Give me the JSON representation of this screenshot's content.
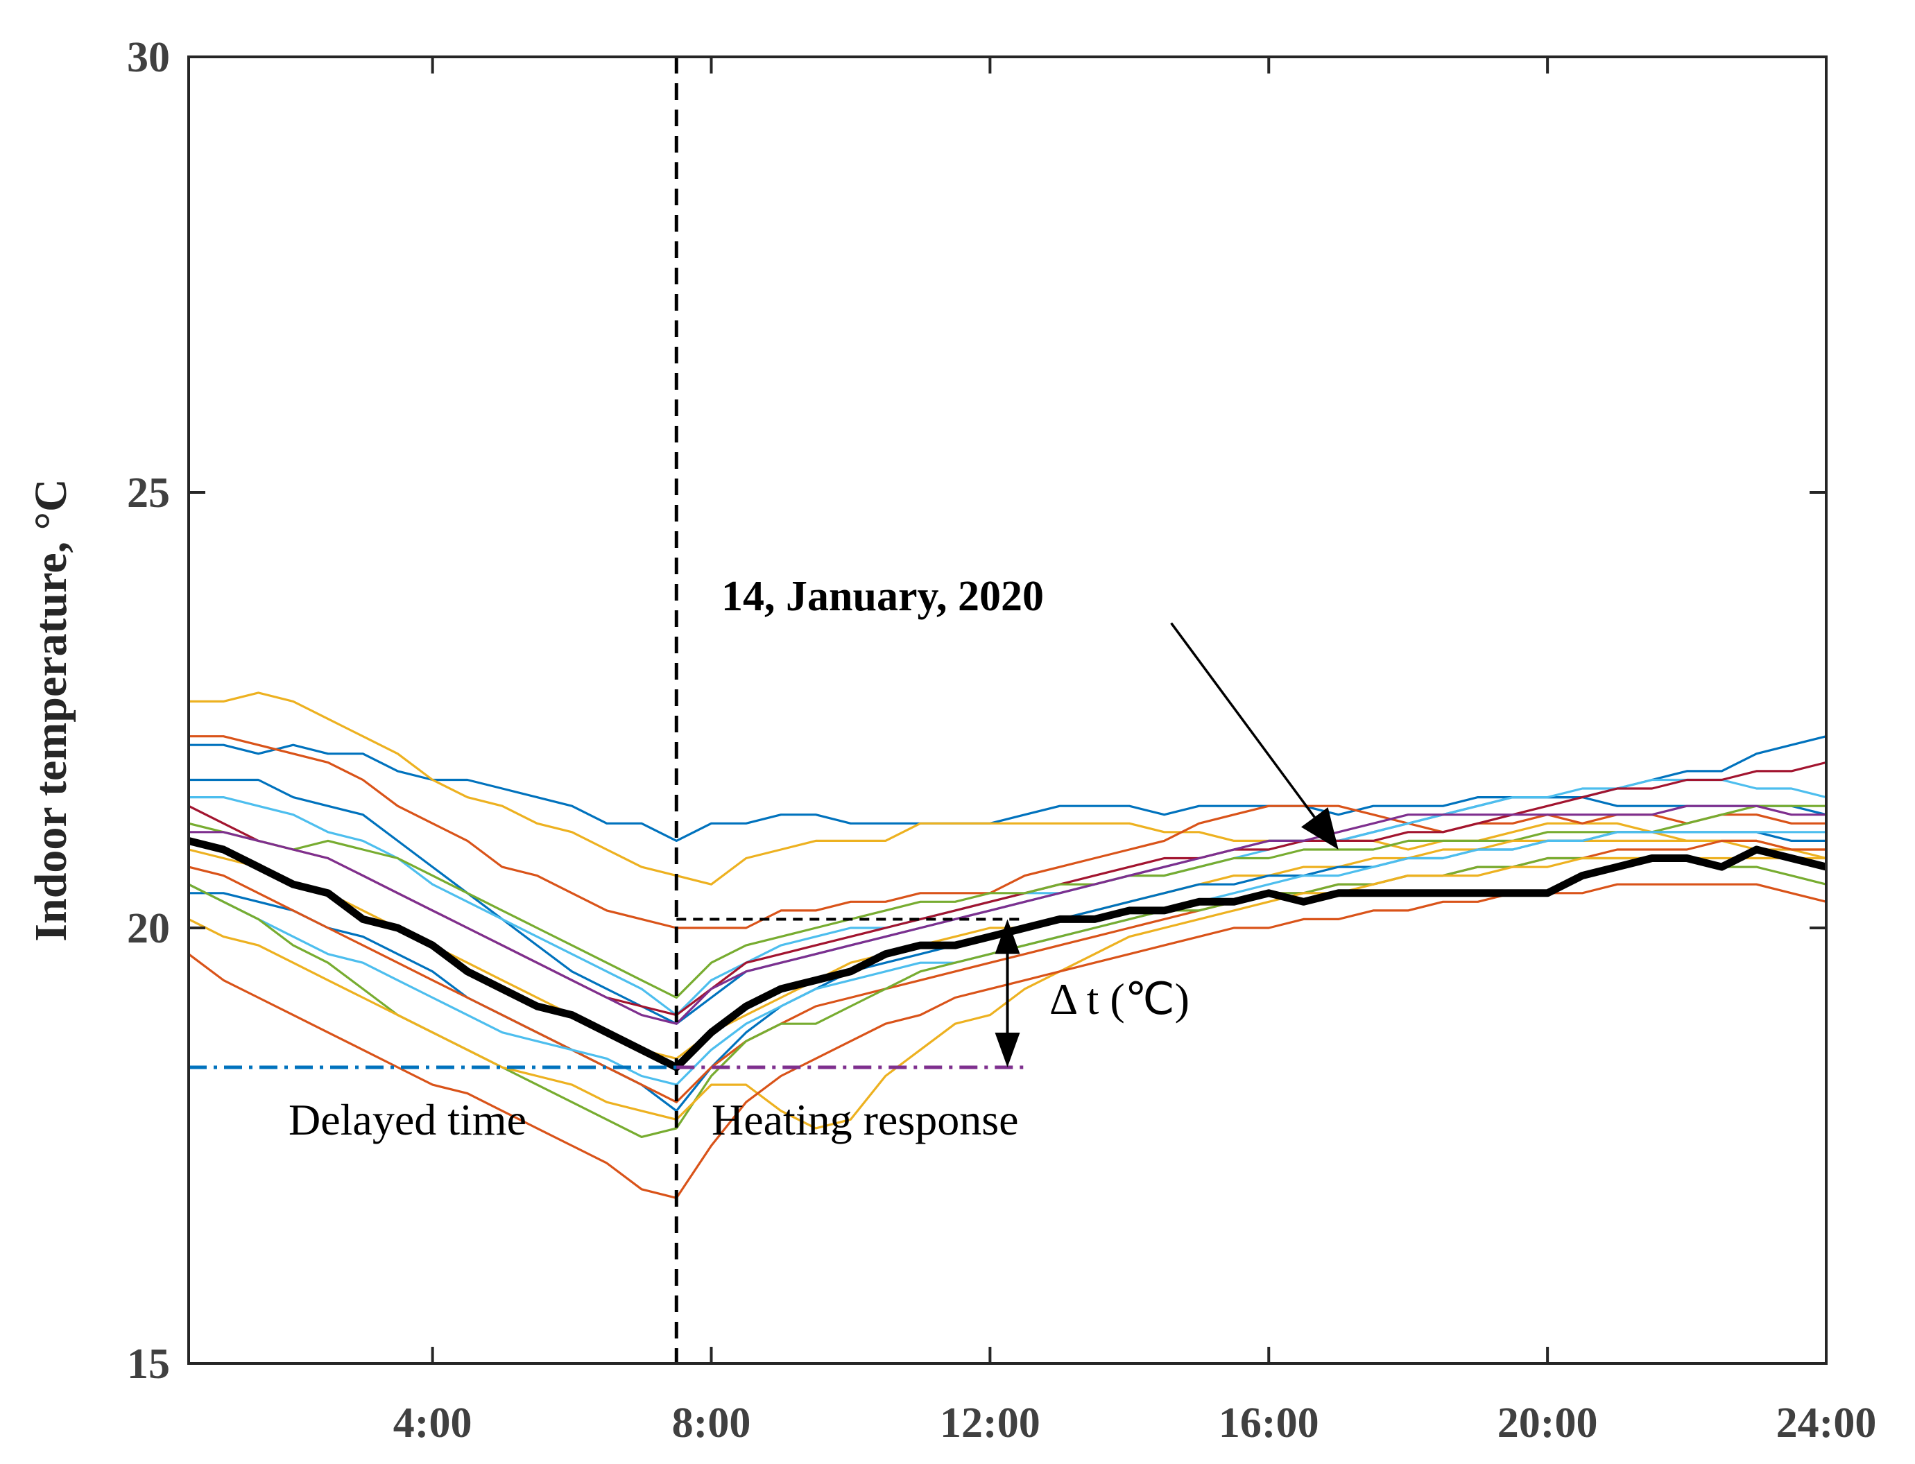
{
  "chart_data": {
    "type": "line",
    "title": "",
    "xlabel": "",
    "ylabel": "Indoor temperature, °C",
    "xlim": [
      0.5,
      24
    ],
    "ylim": [
      15,
      30
    ],
    "x_tick_values": [
      4,
      8,
      12,
      16,
      20,
      24
    ],
    "x_tick_labels": [
      "4:00",
      "8:00",
      "12:00",
      "16:00",
      "20:00",
      "24:00"
    ],
    "y_tick_values": [
      15,
      20,
      25,
      30
    ],
    "y_tick_labels": [
      "15",
      "20",
      "25",
      "30"
    ],
    "grid": false,
    "x": [
      0.5,
      1,
      1.5,
      2,
      2.5,
      3,
      3.5,
      4,
      4.5,
      5,
      5.5,
      6,
      6.5,
      7,
      7.5,
      8,
      8.5,
      9,
      9.5,
      10,
      10.5,
      11,
      11.5,
      12,
      12.5,
      13,
      13.5,
      14,
      14.5,
      15,
      15.5,
      16,
      16.5,
      17,
      17.5,
      18,
      18.5,
      19,
      19.5,
      20,
      20.5,
      21,
      21.5,
      22,
      22.5,
      23,
      23.5,
      24
    ],
    "heating_start_hour": 7.5,
    "series": [
      {
        "name": "",
        "color": "#0072BD",
        "values": [
          22.1,
          22.1,
          22.0,
          22.1,
          22.0,
          22.0,
          21.8,
          21.7,
          21.7,
          21.6,
          21.5,
          21.4,
          21.2,
          21.2,
          21.0,
          21.2,
          21.2,
          21.3,
          21.3,
          21.2,
          21.2,
          21.2,
          21.2,
          21.2,
          21.3,
          21.4,
          21.4,
          21.4,
          21.3,
          21.4,
          21.4,
          21.4,
          21.4,
          21.3,
          21.4,
          21.4,
          21.4,
          21.5,
          21.5,
          21.5,
          21.5,
          21.6,
          21.7,
          21.8,
          21.8,
          22.0,
          22.1,
          22.2
        ]
      },
      {
        "name": "",
        "color": "#EDB120",
        "values": [
          22.6,
          22.6,
          22.7,
          22.6,
          22.4,
          22.2,
          22.0,
          21.7,
          21.5,
          21.4,
          21.2,
          21.1,
          20.9,
          20.7,
          20.6,
          20.5,
          20.8,
          20.9,
          21.0,
          21.0,
          21.0,
          21.2,
          21.2,
          21.2,
          21.2,
          21.2,
          21.2,
          21.2,
          21.1,
          21.1,
          21.0,
          21.0,
          21.0,
          21.0,
          21.0,
          20.9,
          21.0,
          21.0,
          21.1,
          21.2,
          21.2,
          21.2,
          21.1,
          21.0,
          21.0,
          20.9,
          20.9,
          20.8
        ]
      },
      {
        "name": "",
        "color": "#D95319",
        "values": [
          22.2,
          22.2,
          22.1,
          22.0,
          21.9,
          21.7,
          21.4,
          21.2,
          21.0,
          20.7,
          20.6,
          20.4,
          20.2,
          20.1,
          20.0,
          20.0,
          20.0,
          20.2,
          20.2,
          20.3,
          20.3,
          20.4,
          20.4,
          20.4,
          20.6,
          20.7,
          20.8,
          20.9,
          21.0,
          21.2,
          21.3,
          21.4,
          21.4,
          21.4,
          21.3,
          21.2,
          21.1,
          21.2,
          21.2,
          21.3,
          21.2,
          21.3,
          21.3,
          21.2,
          21.3,
          21.3,
          21.2,
          21.2
        ]
      },
      {
        "name": "",
        "color": "#0072BD",
        "values": [
          21.7,
          21.7,
          21.7,
          21.5,
          21.4,
          21.3,
          21.0,
          20.7,
          20.4,
          20.1,
          19.8,
          19.5,
          19.3,
          19.1,
          18.9,
          19.2,
          19.5,
          19.6,
          19.7,
          19.8,
          19.9,
          20.0,
          20.1,
          20.2,
          20.3,
          20.4,
          20.5,
          20.6,
          20.7,
          20.8,
          20.9,
          21.0,
          21.0,
          21.0,
          21.1,
          21.2,
          21.3,
          21.4,
          21.5,
          21.5,
          21.5,
          21.4,
          21.4,
          21.4,
          21.4,
          21.4,
          21.4,
          21.3
        ]
      },
      {
        "name": "",
        "color": "#4DBEEE",
        "values": [
          21.5,
          21.5,
          21.4,
          21.3,
          21.1,
          21.0,
          20.8,
          20.5,
          20.3,
          20.1,
          19.9,
          19.7,
          19.5,
          19.3,
          19.0,
          19.4,
          19.6,
          19.8,
          19.9,
          20.0,
          20.0,
          20.1,
          20.2,
          20.3,
          20.4,
          20.4,
          20.5,
          20.6,
          20.6,
          20.7,
          20.8,
          20.9,
          21.0,
          21.0,
          21.1,
          21.2,
          21.3,
          21.4,
          21.5,
          21.5,
          21.6,
          21.6,
          21.7,
          21.7,
          21.7,
          21.6,
          21.6,
          21.5
        ]
      },
      {
        "name": "",
        "color": "#A2142F",
        "values": [
          21.4,
          21.2,
          21.0,
          20.9,
          20.8,
          20.6,
          20.4,
          20.2,
          20.0,
          19.8,
          19.6,
          19.4,
          19.2,
          19.1,
          19.0,
          19.3,
          19.6,
          19.7,
          19.8,
          19.9,
          20.0,
          20.1,
          20.2,
          20.3,
          20.4,
          20.5,
          20.6,
          20.7,
          20.8,
          20.8,
          20.9,
          20.9,
          21.0,
          21.0,
          21.0,
          21.1,
          21.1,
          21.2,
          21.3,
          21.4,
          21.5,
          21.6,
          21.6,
          21.7,
          21.7,
          21.8,
          21.8,
          21.9
        ]
      },
      {
        "name": "",
        "color": "#77AC30",
        "values": [
          21.2,
          21.1,
          21.0,
          20.9,
          21.0,
          20.9,
          20.8,
          20.6,
          20.4,
          20.2,
          20.0,
          19.8,
          19.6,
          19.4,
          19.2,
          19.6,
          19.8,
          19.9,
          20.0,
          20.1,
          20.2,
          20.3,
          20.3,
          20.4,
          20.4,
          20.5,
          20.5,
          20.6,
          20.6,
          20.7,
          20.8,
          20.8,
          20.9,
          20.9,
          20.9,
          21.0,
          21.0,
          21.0,
          21.0,
          21.1,
          21.1,
          21.1,
          21.1,
          21.2,
          21.3,
          21.4,
          21.4,
          21.4
        ]
      },
      {
        "name": "",
        "color": "#7E2F8E",
        "values": [
          21.1,
          21.1,
          21.0,
          20.9,
          20.8,
          20.6,
          20.4,
          20.2,
          20.0,
          19.8,
          19.6,
          19.4,
          19.2,
          19.0,
          18.9,
          19.3,
          19.5,
          19.6,
          19.7,
          19.8,
          19.9,
          20.0,
          20.1,
          20.2,
          20.3,
          20.4,
          20.5,
          20.6,
          20.7,
          20.8,
          20.9,
          21.0,
          21.0,
          21.1,
          21.2,
          21.3,
          21.3,
          21.3,
          21.3,
          21.3,
          21.3,
          21.3,
          21.3,
          21.4,
          21.4,
          21.4,
          21.3,
          21.3
        ]
      },
      {
        "name": "",
        "color": "#EDB120",
        "values": [
          20.9,
          20.8,
          20.7,
          20.5,
          20.4,
          20.2,
          20.0,
          19.8,
          19.6,
          19.4,
          19.2,
          19.0,
          18.8,
          18.6,
          18.5,
          18.8,
          19.0,
          19.2,
          19.4,
          19.6,
          19.7,
          19.8,
          19.9,
          20.0,
          20.0,
          20.1,
          20.2,
          20.3,
          20.4,
          20.5,
          20.6,
          20.6,
          20.7,
          20.7,
          20.8,
          20.8,
          20.9,
          20.9,
          21.0,
          21.0,
          21.0,
          21.0,
          21.0,
          21.0,
          21.0,
          21.0,
          20.9,
          20.9
        ]
      },
      {
        "name": "",
        "color": "#0072BD",
        "values": [
          20.4,
          20.4,
          20.3,
          20.2,
          20.0,
          19.9,
          19.7,
          19.5,
          19.2,
          19.0,
          18.8,
          18.6,
          18.4,
          18.2,
          17.9,
          18.4,
          18.8,
          19.1,
          19.3,
          19.5,
          19.6,
          19.7,
          19.8,
          19.9,
          20.0,
          20.1,
          20.2,
          20.3,
          20.4,
          20.5,
          20.5,
          20.6,
          20.6,
          20.7,
          20.7,
          20.8,
          20.8,
          20.9,
          20.9,
          21.0,
          21.0,
          21.1,
          21.1,
          21.1,
          21.1,
          21.1,
          21.0,
          21.0
        ]
      },
      {
        "name": "",
        "color": "#D95319",
        "values": [
          20.7,
          20.6,
          20.4,
          20.2,
          20.0,
          19.8,
          19.6,
          19.4,
          19.2,
          19.0,
          18.8,
          18.6,
          18.4,
          18.2,
          18.0,
          18.4,
          18.7,
          18.9,
          19.1,
          19.2,
          19.3,
          19.4,
          19.5,
          19.6,
          19.7,
          19.8,
          19.9,
          20.0,
          20.1,
          20.2,
          20.3,
          20.4,
          20.4,
          20.5,
          20.5,
          20.6,
          20.6,
          20.7,
          20.7,
          20.8,
          20.8,
          20.9,
          20.9,
          20.9,
          21.0,
          21.0,
          20.9,
          20.9
        ]
      },
      {
        "name": "",
        "color": "#4DBEEE",
        "values": [
          20.5,
          20.3,
          20.1,
          19.9,
          19.7,
          19.6,
          19.4,
          19.2,
          19.0,
          18.8,
          18.7,
          18.6,
          18.5,
          18.3,
          18.2,
          18.6,
          18.9,
          19.1,
          19.3,
          19.4,
          19.5,
          19.6,
          19.6,
          19.7,
          19.8,
          19.9,
          20.0,
          20.1,
          20.2,
          20.3,
          20.4,
          20.5,
          20.6,
          20.6,
          20.7,
          20.8,
          20.8,
          20.9,
          20.9,
          21.0,
          21.0,
          21.1,
          21.1,
          21.1,
          21.1,
          21.1,
          21.1,
          21.1
        ]
      },
      {
        "name": "",
        "color": "#77AC30",
        "values": [
          20.5,
          20.3,
          20.1,
          19.8,
          19.6,
          19.3,
          19.0,
          18.8,
          18.6,
          18.4,
          18.2,
          18.0,
          17.8,
          17.6,
          17.7,
          18.3,
          18.7,
          18.9,
          18.9,
          19.1,
          19.3,
          19.5,
          19.6,
          19.7,
          19.8,
          19.9,
          20.0,
          20.1,
          20.2,
          20.2,
          20.3,
          20.4,
          20.4,
          20.5,
          20.5,
          20.6,
          20.6,
          20.7,
          20.7,
          20.8,
          20.8,
          20.8,
          20.8,
          20.8,
          20.7,
          20.7,
          20.6,
          20.5
        ]
      },
      {
        "name": "",
        "color": "#EDB120",
        "values": [
          20.1,
          19.9,
          19.8,
          19.6,
          19.4,
          19.2,
          19.0,
          18.8,
          18.6,
          18.4,
          18.3,
          18.2,
          18.0,
          17.9,
          17.8,
          18.2,
          18.2,
          17.9,
          17.7,
          17.8,
          18.3,
          18.6,
          18.9,
          19.0,
          19.3,
          19.5,
          19.7,
          19.9,
          20.0,
          20.1,
          20.2,
          20.3,
          20.4,
          20.4,
          20.5,
          20.6,
          20.6,
          20.6,
          20.7,
          20.7,
          20.8,
          20.8,
          20.8,
          20.8,
          20.8,
          20.8,
          20.8,
          20.8
        ]
      },
      {
        "name": "",
        "color": "#D95319",
        "values": [
          19.7,
          19.4,
          19.2,
          19.0,
          18.8,
          18.6,
          18.4,
          18.2,
          18.1,
          17.9,
          17.7,
          17.5,
          17.3,
          17.0,
          16.9,
          17.5,
          18.0,
          18.3,
          18.5,
          18.7,
          18.9,
          19.0,
          19.2,
          19.3,
          19.4,
          19.5,
          19.6,
          19.7,
          19.8,
          19.9,
          20.0,
          20.0,
          20.1,
          20.1,
          20.2,
          20.2,
          20.3,
          20.3,
          20.4,
          20.4,
          20.4,
          20.5,
          20.5,
          20.5,
          20.5,
          20.5,
          20.4,
          20.3
        ]
      },
      {
        "name": "14, January, 2020",
        "color": "#000000",
        "highlight": true,
        "values": [
          21.0,
          20.9,
          20.7,
          20.5,
          20.4,
          20.1,
          20.0,
          19.8,
          19.5,
          19.3,
          19.1,
          19.0,
          18.8,
          18.6,
          18.4,
          18.8,
          19.1,
          19.3,
          19.4,
          19.5,
          19.7,
          19.8,
          19.8,
          19.9,
          20.0,
          20.1,
          20.1,
          20.2,
          20.2,
          20.3,
          20.3,
          20.4,
          20.3,
          20.4,
          20.4,
          20.4,
          20.4,
          20.4,
          20.4,
          20.4,
          20.6,
          20.7,
          20.8,
          20.8,
          20.7,
          20.9,
          20.8,
          20.7
        ]
      }
    ],
    "reference_lines": {
      "heating_start": {
        "x": 7.5,
        "color": "#000000",
        "style": "dashed"
      },
      "min_temp_left": {
        "y": 18.4,
        "x_from": 0.5,
        "x_to": 7.5,
        "color": "#0072BD",
        "style": "dash-dot"
      },
      "min_temp_right": {
        "y": 18.4,
        "x_from": 7.5,
        "x_to": 12.5,
        "color": "#7E2F8E",
        "style": "dash-dot"
      },
      "target_temp": {
        "y": 20.1,
        "x_from": 7.5,
        "x_to": 12.5,
        "color": "#000000",
        "style": "dashed"
      }
    },
    "annotations": {
      "delta_label": "Δ t (℃)",
      "delta_x": 12.25,
      "delta_from": 18.4,
      "delta_to": 20.1,
      "delayed_label": "Delayed time",
      "heating_label": "Heating response",
      "date_label": "14, January, 2020",
      "date_arrow_tail": [
        14.6,
        23.5
      ],
      "date_arrow_head": [
        17.0,
        20.9
      ]
    }
  }
}
